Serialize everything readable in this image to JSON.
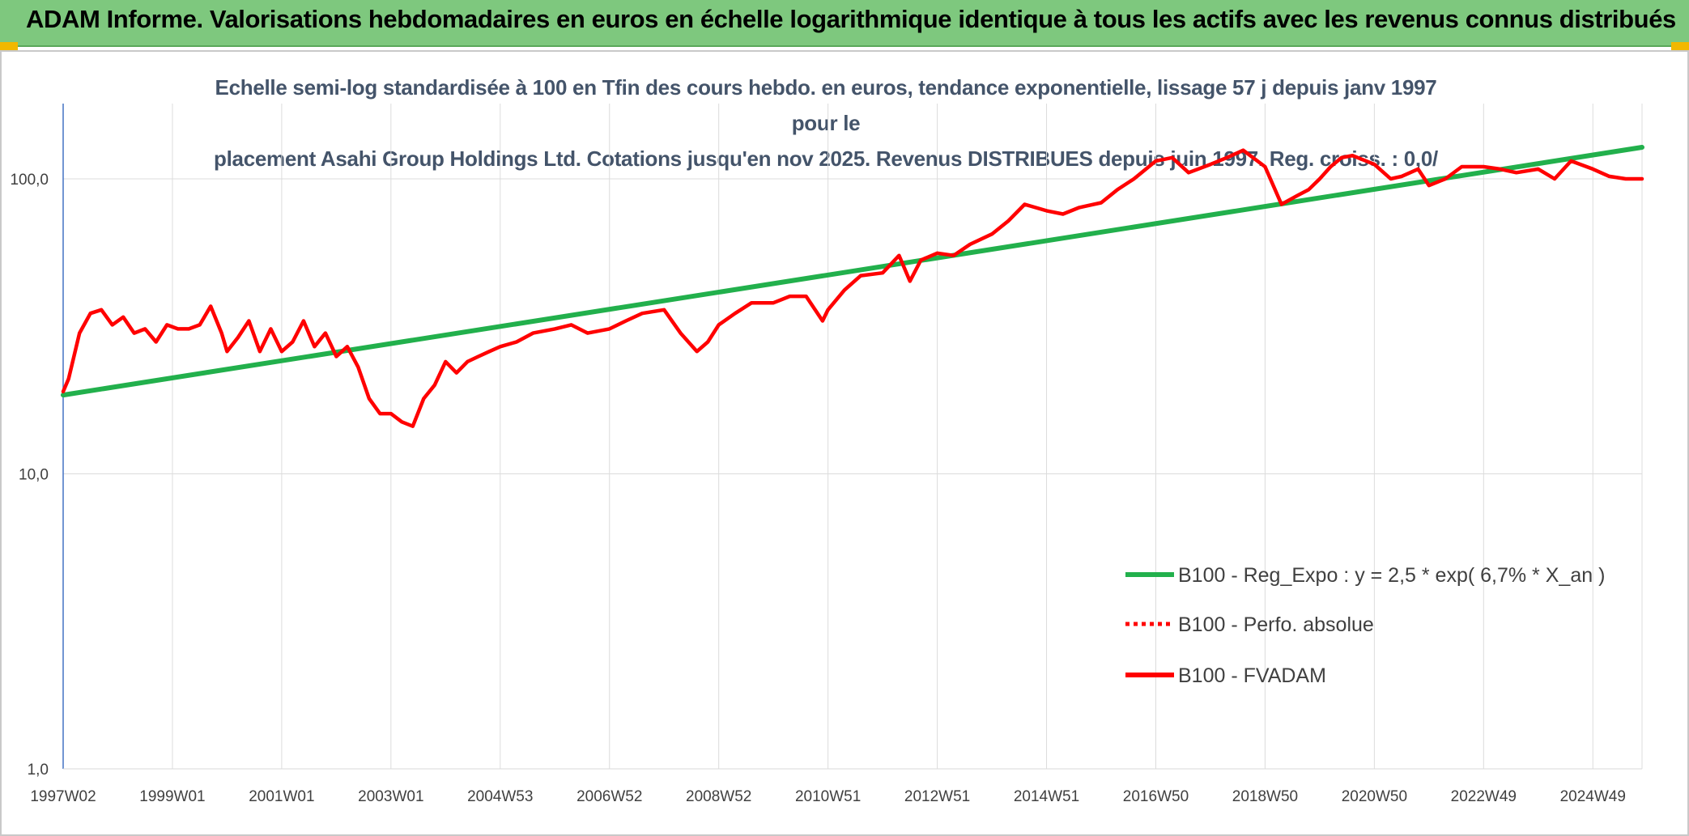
{
  "banner": {
    "title": "ADAM Informe. Valorisations hebdomadaires en euros en échelle logarithmique identique à tous les actifs avec les revenus connus distribués"
  },
  "chart_data": {
    "type": "line",
    "title": "Echelle semi-log standardisée à 100 en Tfin des cours hebdo. en euros, tendance exponentielle, lissage 57 j depuis janv 1997 pour le placement Asahi Group Holdings Ltd. Cotations jusqu'en nov 2025. Revenus DISTRIBUES depuis juin 1997. Reg. croiss. : 0,0/",
    "title_lines": [
      "Echelle semi-log standardisée à 100 en Tfin des cours hebdo. en euros, tendance exponentielle, lissage 57 j depuis janv 1997 pour le",
      "placement Asahi Group Holdings Ltd. Cotations jusqu'en nov 2025. Revenus DISTRIBUES depuis juin 1997. Reg. croiss. : 0,0/"
    ],
    "y_scale": "log",
    "ylim": [
      1,
      180
    ],
    "y_ticks": [
      1,
      10,
      100
    ],
    "y_tick_labels": [
      "1,0",
      "10,0",
      "100,0"
    ],
    "xlim": [
      1997.0,
      2025.9
    ],
    "x_ticks": [
      1997.0,
      1999.0,
      2001.0,
      2003.0,
      2005.0,
      2007.0,
      2009.0,
      2011.0,
      2013.0,
      2015.0,
      2017.0,
      2019.0,
      2021.0,
      2023.0,
      2025.0
    ],
    "x_tick_labels": [
      "1997W02",
      "1999W01",
      "2001W01",
      "2003W01",
      "2004W53",
      "2006W52",
      "2008W52",
      "2010W51",
      "2012W51",
      "2014W51",
      "2016W50",
      "2018W50",
      "2020W50",
      "2022W49",
      "2024W49"
    ],
    "grid": "vertical and horizontal",
    "legend_position": "bottom-right",
    "series": [
      {
        "name": "B100 - Reg_Expo : y = 2,5 * exp( 6,7% *  X_an )",
        "color": "#22b04c",
        "style": "solid",
        "x": [
          1997.0,
          2025.9
        ],
        "y": [
          18.5,
          128
        ]
      },
      {
        "name": "B100 - Perfo. absolue",
        "color": "#ff0000",
        "style": "dotted",
        "x": [],
        "y": []
      },
      {
        "name": "B100 - FVADAM",
        "color": "#ff0000",
        "style": "solid",
        "x": [
          1997.0,
          1997.1,
          1997.3,
          1997.5,
          1997.7,
          1997.9,
          1998.1,
          1998.3,
          1998.5,
          1998.7,
          1998.9,
          1999.1,
          1999.3,
          1999.5,
          1999.7,
          1999.9,
          2000.0,
          2000.2,
          2000.4,
          2000.6,
          2000.8,
          2001.0,
          2001.2,
          2001.4,
          2001.6,
          2001.8,
          2002.0,
          2002.2,
          2002.4,
          2002.6,
          2002.8,
          2003.0,
          2003.2,
          2003.4,
          2003.6,
          2003.8,
          2004.0,
          2004.2,
          2004.4,
          2004.6,
          2004.8,
          2005.0,
          2005.3,
          2005.6,
          2006.0,
          2006.3,
          2006.6,
          2007.0,
          2007.3,
          2007.6,
          2008.0,
          2008.3,
          2008.6,
          2008.8,
          2009.0,
          2009.3,
          2009.6,
          2010.0,
          2010.3,
          2010.6,
          2010.9,
          2011.0,
          2011.3,
          2011.6,
          2012.0,
          2012.3,
          2012.5,
          2012.7,
          2013.0,
          2013.3,
          2013.6,
          2014.0,
          2014.3,
          2014.6,
          2015.0,
          2015.3,
          2015.6,
          2016.0,
          2016.3,
          2016.6,
          2017.0,
          2017.3,
          2017.6,
          2018.0,
          2018.3,
          2018.6,
          2019.0,
          2019.3,
          2019.6,
          2019.8,
          2020.0,
          2020.2,
          2020.4,
          2020.6,
          2021.0,
          2021.3,
          2021.5,
          2021.8,
          2022.0,
          2022.3,
          2022.6,
          2023.0,
          2023.3,
          2023.6,
          2024.0,
          2024.3,
          2024.6,
          2025.0,
          2025.3,
          2025.6,
          2025.9
        ],
        "y": [
          19,
          21,
          30,
          35,
          36,
          32,
          34,
          30,
          31,
          28,
          32,
          31,
          31,
          32,
          37,
          30,
          26,
          29,
          33,
          26,
          31,
          26,
          28,
          33,
          27,
          30,
          25,
          27,
          23,
          18,
          16,
          16,
          15,
          14.5,
          18,
          20,
          24,
          22,
          24,
          25,
          26,
          27,
          28,
          30,
          31,
          32,
          30,
          31,
          33,
          35,
          36,
          30,
          26,
          28,
          32,
          35,
          38,
          38,
          40,
          40,
          33,
          36,
          42,
          47,
          48,
          55,
          45,
          53,
          56,
          55,
          60,
          65,
          72,
          82,
          78,
          76,
          80,
          83,
          92,
          100,
          115,
          118,
          105,
          112,
          118,
          125,
          110,
          82,
          88,
          92,
          100,
          110,
          118,
          120,
          112,
          100,
          102,
          108,
          95,
          100,
          110,
          110,
          108,
          105,
          108,
          100,
          115,
          108,
          102,
          100,
          100
        ]
      }
    ]
  }
}
